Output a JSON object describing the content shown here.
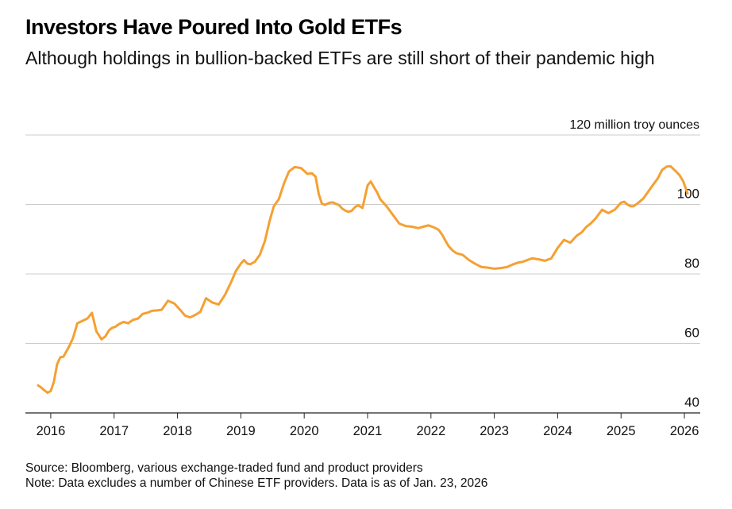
{
  "header": {
    "title": "Investors Have Poured Into Gold ETFs",
    "subtitle": "Although holdings in bullion-backed ETFs are still short of their pandemic high"
  },
  "footer": {
    "source": "Source: Bloomberg, various exchange-traded fund and product providers",
    "note": "Note: Data excludes a number of Chinese ETF providers. Data is as of Jan. 23, 2026"
  },
  "colors": {
    "line": "#F5A032",
    "grid": "#CCCCCC",
    "axis": "#222222"
  },
  "chart_data": {
    "type": "line",
    "ylabel": "million troy ounces",
    "ylim": [
      40,
      120
    ],
    "yticks": [
      40,
      60,
      80,
      100,
      120
    ],
    "ytick_labels": [
      "40",
      "60",
      "80",
      "100",
      "120 million troy ounces"
    ],
    "xlim": [
      2015.6,
      2026.25
    ],
    "xticks": [
      2016,
      2017,
      2018,
      2019,
      2020,
      2021,
      2022,
      2023,
      2024,
      2025,
      2026
    ],
    "xtick_labels": [
      "2016",
      "2017",
      "2018",
      "2019",
      "2020",
      "2021",
      "2022",
      "2023",
      "2024",
      "2025",
      "2026"
    ],
    "grid": true,
    "series": [
      {
        "x": [
          2015.8,
          2015.85,
          2015.9,
          2015.95,
          2016.0,
          2016.05,
          2016.1,
          2016.15,
          2016.2,
          2016.28,
          2016.35,
          2016.42,
          2016.5,
          2016.58,
          2016.65,
          2016.72,
          2016.8,
          2016.86,
          2016.92,
          2016.97,
          2017.02,
          2017.08,
          2017.15,
          2017.22,
          2017.3,
          2017.38,
          2017.45,
          2017.52,
          2017.6,
          2017.68,
          2017.75,
          2017.85,
          2017.95,
          2018.05,
          2018.12,
          2018.2,
          2018.28,
          2018.36,
          2018.45,
          2018.55,
          2018.65,
          2018.75,
          2018.85,
          2018.92,
          2019.0,
          2019.05,
          2019.1,
          2019.15,
          2019.22,
          2019.3,
          2019.38,
          2019.45,
          2019.52,
          2019.6,
          2019.68,
          2019.76,
          2019.85,
          2019.95,
          2020.05,
          2020.12,
          2020.18,
          2020.23,
          2020.28,
          2020.33,
          2020.4,
          2020.45,
          2020.5,
          2020.55,
          2020.6,
          2020.65,
          2020.7,
          2020.75,
          2020.8,
          2020.85,
          2020.92,
          2021.0,
          2021.05,
          2021.1,
          2021.15,
          2021.2,
          2021.3,
          2021.4,
          2021.5,
          2021.6,
          2021.7,
          2021.8,
          2021.88,
          2021.96,
          2022.05,
          2022.12,
          2022.18,
          2022.23,
          2022.28,
          2022.34,
          2022.4,
          2022.5,
          2022.6,
          2022.7,
          2022.8,
          2022.9,
          2023.0,
          2023.1,
          2023.2,
          2023.3,
          2023.38,
          2023.45,
          2023.52,
          2023.6,
          2023.7,
          2023.8,
          2023.9,
          2024.0,
          2024.1,
          2024.2,
          2024.3,
          2024.38,
          2024.45,
          2024.52,
          2024.6,
          2024.7,
          2024.8,
          2024.9,
          2025.0,
          2025.05,
          2025.1,
          2025.15,
          2025.2,
          2025.28,
          2025.35,
          2025.42,
          2025.5,
          2025.58,
          2025.65,
          2025.72,
          2025.78,
          2025.85,
          2025.92,
          2025.98,
          2026.05
        ],
        "y": [
          47.9,
          47.3,
          46.5,
          45.8,
          46.3,
          49.0,
          54.0,
          56.0,
          56.2,
          58.8,
          61.5,
          65.8,
          66.5,
          67.2,
          68.8,
          63.5,
          61.2,
          62.0,
          63.8,
          64.5,
          64.8,
          65.6,
          66.2,
          65.8,
          66.8,
          67.2,
          68.5,
          68.8,
          69.4,
          69.5,
          69.7,
          72.3,
          71.5,
          69.5,
          68.0,
          67.5,
          68.2,
          69.1,
          73.0,
          71.8,
          71.2,
          74.0,
          77.8,
          80.8,
          83.0,
          84.0,
          83.0,
          82.8,
          83.5,
          85.5,
          89.5,
          95.0,
          99.5,
          101.5,
          106.0,
          109.5,
          110.8,
          110.5,
          108.8,
          109.0,
          108.0,
          103.0,
          100.2,
          99.9,
          100.5,
          100.6,
          100.2,
          99.8,
          98.8,
          98.2,
          97.9,
          98.2,
          99.2,
          99.8,
          99.0,
          105.5,
          106.6,
          105.0,
          103.5,
          101.5,
          99.5,
          97.0,
          94.5,
          93.8,
          93.6,
          93.2,
          93.6,
          94.0,
          93.4,
          92.7,
          91.2,
          89.5,
          88.0,
          86.8,
          86.0,
          85.5,
          84.0,
          82.9,
          82.0,
          81.8,
          81.5,
          81.7,
          82.0,
          82.8,
          83.3,
          83.5,
          84.0,
          84.5,
          84.2,
          83.8,
          84.5,
          87.5,
          89.8,
          89.0,
          91.0,
          92.0,
          93.5,
          94.5,
          96.0,
          98.5,
          97.5,
          98.5,
          100.5,
          100.8,
          100.0,
          99.5,
          99.5,
          100.6,
          101.7,
          103.5,
          105.5,
          107.5,
          110.0,
          110.9,
          111.0,
          109.8,
          108.5,
          106.7,
          103.2
        ]
      }
    ]
  }
}
